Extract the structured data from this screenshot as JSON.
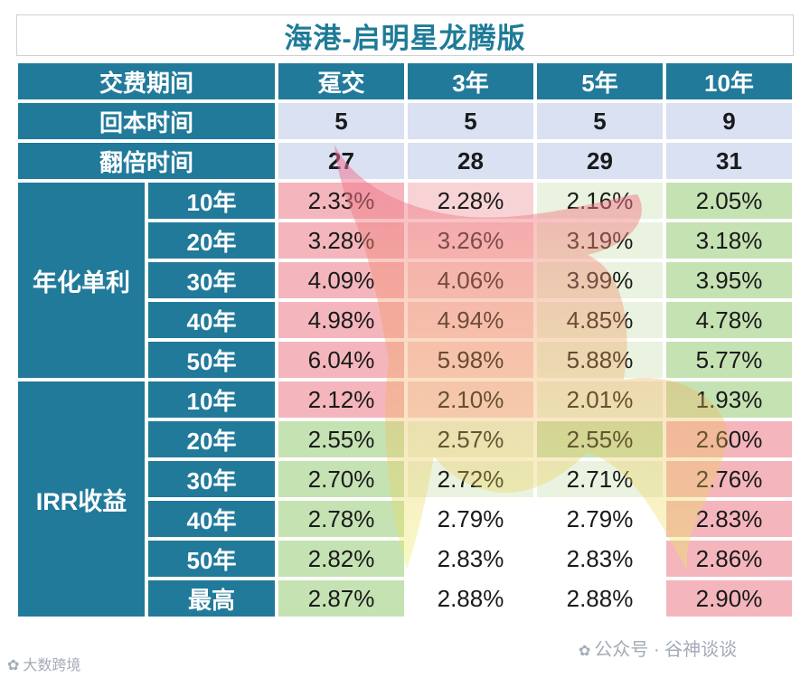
{
  "title": "海港-启明星龙腾版",
  "header": {
    "corner": "交费期间",
    "columns": [
      "趸交",
      "3年",
      "5年",
      "10年"
    ]
  },
  "summary_rows": [
    {
      "label": "回本时间",
      "values": [
        "5",
        "5",
        "5",
        "9"
      ]
    },
    {
      "label": "翻倍时间",
      "values": [
        "27",
        "28",
        "29",
        "31"
      ]
    }
  ],
  "groups": [
    {
      "label": "年化单利",
      "rows": [
        {
          "year": "10年",
          "values": [
            "2.33%",
            "2.28%",
            "2.16%",
            "2.05%"
          ],
          "colors": [
            "red",
            "pink",
            "lightg",
            "green"
          ]
        },
        {
          "year": "20年",
          "values": [
            "3.28%",
            "3.26%",
            "3.19%",
            "3.18%"
          ],
          "colors": [
            "red",
            "pink",
            "lightg",
            "green"
          ]
        },
        {
          "year": "30年",
          "values": [
            "4.09%",
            "4.06%",
            "3.99%",
            "3.95%"
          ],
          "colors": [
            "red",
            "pink",
            "lightg",
            "green"
          ]
        },
        {
          "year": "40年",
          "values": [
            "4.98%",
            "4.94%",
            "4.85%",
            "4.78%"
          ],
          "colors": [
            "red",
            "pink",
            "lightg",
            "green"
          ]
        },
        {
          "year": "50年",
          "values": [
            "6.04%",
            "5.98%",
            "5.88%",
            "5.77%"
          ],
          "colors": [
            "red",
            "pink",
            "lightg",
            "green"
          ]
        }
      ]
    },
    {
      "label": "IRR收益",
      "rows": [
        {
          "year": "10年",
          "values": [
            "2.12%",
            "2.10%",
            "2.01%",
            "1.93%"
          ],
          "colors": [
            "red",
            "pink",
            "lightg",
            "green"
          ]
        },
        {
          "year": "20年",
          "values": [
            "2.55%",
            "2.57%",
            "2.55%",
            "2.60%"
          ],
          "colors": [
            "green",
            "lightg",
            "green",
            "red"
          ]
        },
        {
          "year": "30年",
          "values": [
            "2.70%",
            "2.72%",
            "2.71%",
            "2.76%"
          ],
          "colors": [
            "green",
            "lightg",
            "lightg",
            "red"
          ]
        },
        {
          "year": "40年",
          "values": [
            "2.78%",
            "2.79%",
            "2.79%",
            "2.83%"
          ],
          "colors": [
            "green",
            "white",
            "white",
            "red"
          ]
        },
        {
          "year": "50年",
          "values": [
            "2.82%",
            "2.83%",
            "2.83%",
            "2.86%"
          ],
          "colors": [
            "green",
            "white",
            "white",
            "red"
          ]
        },
        {
          "year": "最高",
          "values": [
            "2.87%",
            "2.88%",
            "2.88%",
            "2.90%"
          ],
          "colors": [
            "green",
            "white",
            "white",
            "red"
          ]
        }
      ]
    }
  ],
  "footer": {
    "left": "大数跨境",
    "right": "公众号 · 谷神谈谈"
  }
}
